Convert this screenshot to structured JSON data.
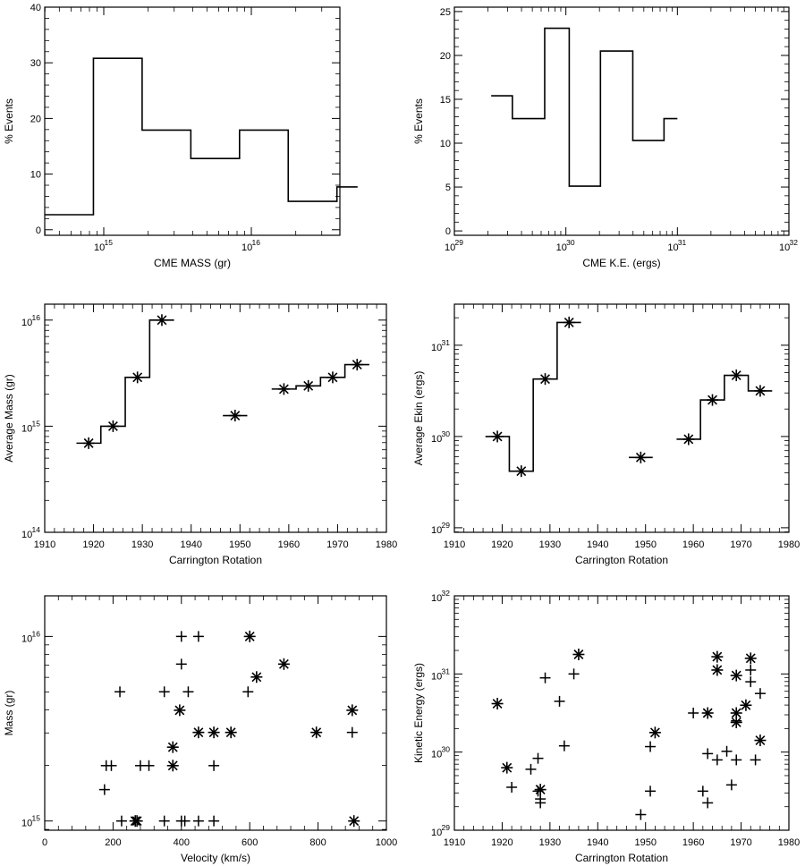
{
  "chart_data": [
    {
      "id": "p1",
      "type": "histogram",
      "xlabel": "CME MASS (gr)",
      "ylabel": "% Events",
      "xscale": "log",
      "xlim_exp": [
        14.6,
        16.6
      ],
      "xticks": [
        {
          "base": "10",
          "exp": "15",
          "value_exp": 15
        },
        {
          "base": "10",
          "exp": "16",
          "value_exp": 16
        }
      ],
      "ylim": [
        -1,
        40
      ],
      "yticks": [
        0,
        10,
        20,
        30,
        40
      ],
      "steps": [
        {
          "x0_exp": 14.6,
          "x1_exp": 14.93,
          "value": 2.7
        },
        {
          "x0_exp": 14.93,
          "x1_exp": 15.26,
          "value": 30.8
        },
        {
          "x0_exp": 15.26,
          "x1_exp": 15.59,
          "value": 17.9
        },
        {
          "x0_exp": 15.59,
          "x1_exp": 15.92,
          "value": 12.8
        },
        {
          "x0_exp": 15.92,
          "x1_exp": 16.25,
          "value": 17.9
        },
        {
          "x0_exp": 16.25,
          "x1_exp": 16.58,
          "value": 5.1
        },
        {
          "x0_exp": 16.58,
          "x1_exp": 16.72,
          "value": 7.7
        }
      ]
    },
    {
      "id": "p2",
      "type": "histogram",
      "xlabel": "CME K.E. (ergs)",
      "ylabel": "% Events",
      "xscale": "log",
      "xlim_exp": [
        29,
        32
      ],
      "xticks": [
        {
          "base": "10",
          "exp": "29",
          "value_exp": 29
        },
        {
          "base": "10",
          "exp": "30",
          "value_exp": 30
        },
        {
          "base": "10",
          "exp": "31",
          "value_exp": 31
        },
        {
          "base": "10",
          "exp": "32",
          "value_exp": 32
        }
      ],
      "ylim": [
        -0.5,
        25.5
      ],
      "yticks": [
        0,
        5,
        10,
        15,
        20,
        25
      ],
      "steps": [
        {
          "x0_exp": 29.33,
          "x1_exp": 29.52,
          "value": 15.4
        },
        {
          "x0_exp": 29.52,
          "x1_exp": 29.81,
          "value": 12.8
        },
        {
          "x0_exp": 29.81,
          "x1_exp": 30.03,
          "value": 23.1
        },
        {
          "x0_exp": 30.03,
          "x1_exp": 30.31,
          "value": 5.1
        },
        {
          "x0_exp": 30.31,
          "x1_exp": 30.6,
          "value": 20.5
        },
        {
          "x0_exp": 30.6,
          "x1_exp": 30.88,
          "value": 10.3
        },
        {
          "x0_exp": 30.88,
          "x1_exp": 31.0,
          "value": 12.8
        }
      ]
    },
    {
      "id": "p3",
      "type": "step-scatter",
      "xlabel": "Carrington Rotation",
      "ylabel": "Average Mass (gr)",
      "xlim": [
        1910,
        1980
      ],
      "xticks": [
        1910,
        1920,
        1930,
        1940,
        1950,
        1960,
        1970,
        1980
      ],
      "yscale": "log",
      "ylim_exp": [
        14,
        16.15
      ],
      "yticks": [
        {
          "base": "10",
          "exp": "14",
          "value_exp": 14
        },
        {
          "base": "10",
          "exp": "15",
          "value_exp": 15
        },
        {
          "base": "10",
          "exp": "16",
          "value_exp": 16
        }
      ],
      "points": [
        {
          "x": 1919,
          "y_exp": 14.84
        },
        {
          "x": 1924,
          "y_exp": 15.0
        },
        {
          "x": 1929,
          "y_exp": 15.46
        },
        {
          "x": 1934,
          "y_exp": 16.0
        },
        {
          "x": 1949,
          "y_exp": 15.1
        },
        {
          "x": 1959,
          "y_exp": 15.35
        },
        {
          "x": 1964,
          "y_exp": 15.38
        },
        {
          "x": 1969,
          "y_exp": 15.46
        },
        {
          "x": 1974,
          "y_exp": 15.58
        }
      ],
      "step_groups": [
        [
          0,
          1,
          2,
          3
        ],
        [
          5,
          6,
          7,
          8
        ]
      ],
      "isolated": [
        4
      ]
    },
    {
      "id": "p4",
      "type": "step-scatter",
      "xlabel": "Carrington Rotation",
      "ylabel": "Average Ekin (ergs)",
      "xlim": [
        1910,
        1980
      ],
      "xticks": [
        1910,
        1920,
        1930,
        1940,
        1950,
        1960,
        1970,
        1980
      ],
      "yscale": "log",
      "ylim_exp": [
        28.95,
        31.45
      ],
      "yticks": [
        {
          "base": "10",
          "exp": "29",
          "value_exp": 29
        },
        {
          "base": "10",
          "exp": "30",
          "value_exp": 30
        },
        {
          "base": "10",
          "exp": "31",
          "value_exp": 31
        }
      ],
      "points": [
        {
          "x": 1919,
          "y_exp": 30.0
        },
        {
          "x": 1924,
          "y_exp": 29.62
        },
        {
          "x": 1929,
          "y_exp": 30.63
        },
        {
          "x": 1934,
          "y_exp": 31.25
        },
        {
          "x": 1949,
          "y_exp": 29.77
        },
        {
          "x": 1959,
          "y_exp": 29.97
        },
        {
          "x": 1964,
          "y_exp": 30.4
        },
        {
          "x": 1969,
          "y_exp": 30.67
        },
        {
          "x": 1974,
          "y_exp": 30.5
        }
      ],
      "step_groups": [
        [
          0,
          1,
          2,
          3
        ],
        [
          5,
          6,
          7,
          8
        ]
      ],
      "isolated": [
        4
      ]
    },
    {
      "id": "p5",
      "type": "scatter",
      "xlabel": "Velocity (km/s)",
      "ylabel": "Mass (gr)",
      "xlim": [
        0,
        1000
      ],
      "xticks": [
        0,
        200,
        400,
        600,
        800,
        1000
      ],
      "yscale": "log",
      "ylim_exp": [
        14.95,
        16.22
      ],
      "yticks": [
        {
          "base": "10",
          "exp": "15",
          "value_exp": 15
        },
        {
          "base": "10",
          "exp": "16",
          "value_exp": 16
        }
      ],
      "series": [
        {
          "name": "plus",
          "marker": "plus",
          "points": [
            {
              "x": 175,
              "y_exp": 15.17
            },
            {
              "x": 180,
              "y_exp": 15.3
            },
            {
              "x": 195,
              "y_exp": 15.3
            },
            {
              "x": 220,
              "y_exp": 15.7
            },
            {
              "x": 225,
              "y_exp": 15.0
            },
            {
              "x": 265,
              "y_exp": 15.0
            },
            {
              "x": 280,
              "y_exp": 15.3
            },
            {
              "x": 305,
              "y_exp": 15.3
            },
            {
              "x": 350,
              "y_exp": 15.7
            },
            {
              "x": 350,
              "y_exp": 15.0
            },
            {
              "x": 400,
              "y_exp": 16.0
            },
            {
              "x": 400,
              "y_exp": 15.85
            },
            {
              "x": 400,
              "y_exp": 15.0
            },
            {
              "x": 410,
              "y_exp": 15.0
            },
            {
              "x": 420,
              "y_exp": 15.7
            },
            {
              "x": 450,
              "y_exp": 16.0
            },
            {
              "x": 450,
              "y_exp": 15.0
            },
            {
              "x": 495,
              "y_exp": 15.3
            },
            {
              "x": 495,
              "y_exp": 15.0
            },
            {
              "x": 595,
              "y_exp": 15.7
            },
            {
              "x": 900,
              "y_exp": 15.48
            }
          ]
        },
        {
          "name": "star",
          "marker": "star",
          "points": [
            {
              "x": 265,
              "y_exp": 15.0
            },
            {
              "x": 270,
              "y_exp": 15.0
            },
            {
              "x": 375,
              "y_exp": 15.3
            },
            {
              "x": 375,
              "y_exp": 15.4
            },
            {
              "x": 395,
              "y_exp": 15.6
            },
            {
              "x": 450,
              "y_exp": 15.48
            },
            {
              "x": 495,
              "y_exp": 15.48
            },
            {
              "x": 545,
              "y_exp": 15.48
            },
            {
              "x": 600,
              "y_exp": 16.0
            },
            {
              "x": 620,
              "y_exp": 15.78
            },
            {
              "x": 700,
              "y_exp": 15.85
            },
            {
              "x": 795,
              "y_exp": 15.48
            },
            {
              "x": 900,
              "y_exp": 15.6
            },
            {
              "x": 905,
              "y_exp": 15.0
            }
          ]
        }
      ]
    },
    {
      "id": "p6",
      "type": "scatter",
      "xlabel": "Carrington Rotation",
      "ylabel": "Kinetic Energy (ergs)",
      "xlim": [
        1910,
        1980
      ],
      "xticks": [
        1910,
        1920,
        1930,
        1940,
        1950,
        1960,
        1970,
        1980
      ],
      "yscale": "log",
      "ylim_exp": [
        29,
        32
      ],
      "yticks": [
        {
          "base": "10",
          "exp": "29",
          "value_exp": 29
        },
        {
          "base": "10",
          "exp": "30",
          "value_exp": 30
        },
        {
          "base": "10",
          "exp": "31",
          "value_exp": 31
        },
        {
          "base": "10",
          "exp": "32",
          "value_exp": 32
        }
      ],
      "series": [
        {
          "name": "plus",
          "marker": "plus",
          "points": [
            {
              "x": 1922,
              "y_exp": 29.55
            },
            {
              "x": 1926,
              "y_exp": 29.78
            },
            {
              "x": 1927.5,
              "y_exp": 29.92
            },
            {
              "x": 1927.5,
              "y_exp": 29.5
            },
            {
              "x": 1928,
              "y_exp": 29.4
            },
            {
              "x": 1928,
              "y_exp": 29.35
            },
            {
              "x": 1929,
              "y_exp": 30.95
            },
            {
              "x": 1932,
              "y_exp": 30.65
            },
            {
              "x": 1933,
              "y_exp": 30.08
            },
            {
              "x": 1935,
              "y_exp": 31.0
            },
            {
              "x": 1949,
              "y_exp": 29.2
            },
            {
              "x": 1951,
              "y_exp": 29.5
            },
            {
              "x": 1951,
              "y_exp": 30.07
            },
            {
              "x": 1960,
              "y_exp": 30.5
            },
            {
              "x": 1962,
              "y_exp": 29.5
            },
            {
              "x": 1963,
              "y_exp": 29.98
            },
            {
              "x": 1963,
              "y_exp": 29.35
            },
            {
              "x": 1965,
              "y_exp": 29.9
            },
            {
              "x": 1967,
              "y_exp": 30.01
            },
            {
              "x": 1968,
              "y_exp": 29.58
            },
            {
              "x": 1969,
              "y_exp": 30.4
            },
            {
              "x": 1969,
              "y_exp": 29.9
            },
            {
              "x": 1972,
              "y_exp": 31.05
            },
            {
              "x": 1972,
              "y_exp": 30.9
            },
            {
              "x": 1973,
              "y_exp": 29.9
            },
            {
              "x": 1974,
              "y_exp": 30.75
            }
          ]
        },
        {
          "name": "star",
          "marker": "star",
          "points": [
            {
              "x": 1919,
              "y_exp": 30.62
            },
            {
              "x": 1921,
              "y_exp": 29.8
            },
            {
              "x": 1928,
              "y_exp": 29.52
            },
            {
              "x": 1936,
              "y_exp": 31.25
            },
            {
              "x": 1952,
              "y_exp": 30.25
            },
            {
              "x": 1963,
              "y_exp": 30.5
            },
            {
              "x": 1965,
              "y_exp": 31.05
            },
            {
              "x": 1965,
              "y_exp": 31.22
            },
            {
              "x": 1969,
              "y_exp": 30.98
            },
            {
              "x": 1969,
              "y_exp": 30.5
            },
            {
              "x": 1969,
              "y_exp": 30.38
            },
            {
              "x": 1971,
              "y_exp": 30.6
            },
            {
              "x": 1972,
              "y_exp": 31.2
            },
            {
              "x": 1974,
              "y_exp": 30.15
            }
          ]
        }
      ]
    }
  ]
}
